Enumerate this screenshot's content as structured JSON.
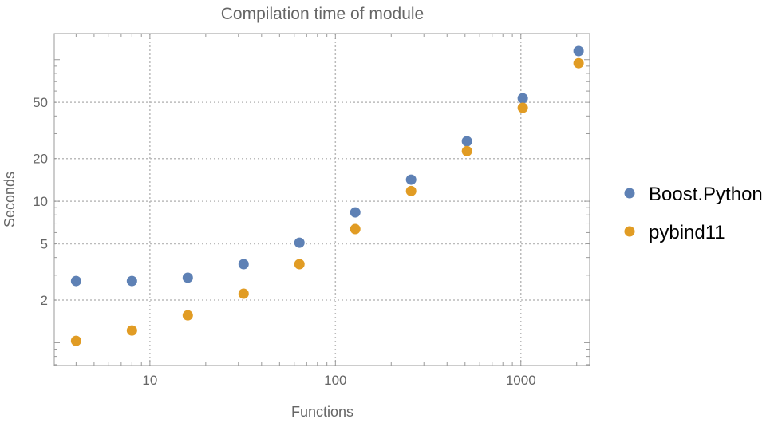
{
  "chart_data": {
    "type": "scatter",
    "title": "Compilation time of module",
    "xlabel": "Functions",
    "ylabel": "Seconds",
    "xscale": "log",
    "yscale": "log",
    "xlim": [
      3.05,
      2350
    ],
    "ylim": [
      0.69,
      153
    ],
    "xticks": [
      10,
      100,
      1000
    ],
    "xtick_labels": [
      "10",
      "100",
      "1000"
    ],
    "yticks": [
      2,
      5,
      10,
      20,
      50
    ],
    "ytick_labels": [
      "2",
      "5",
      "10",
      "20",
      "50"
    ],
    "grid": true,
    "legend_placement": "right",
    "x": [
      4,
      8,
      16,
      32,
      64,
      128,
      256,
      512,
      1024,
      2048
    ],
    "series": [
      {
        "name": "Boost.Python",
        "color": "#5E81B5",
        "values": [
          2.73,
          2.73,
          2.88,
          3.59,
          5.09,
          8.34,
          14.2,
          26.5,
          53.4,
          115
        ]
      },
      {
        "name": "pybind11",
        "color": "#E19C24",
        "values": [
          1.03,
          1.22,
          1.56,
          2.22,
          3.59,
          6.35,
          11.8,
          22.6,
          45.7,
          94.4
        ]
      }
    ]
  }
}
